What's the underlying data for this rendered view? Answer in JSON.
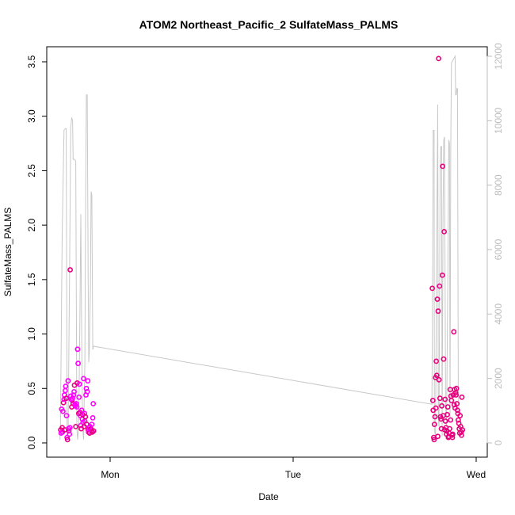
{
  "chart_data": {
    "type": "scatter",
    "title": "ATOM2 Northeast_Pacific_2 SulfateMass_PALMS",
    "xlabel": "Date",
    "ylabel": "SulfateMass_PALMS",
    "x_ticks": [
      {
        "label": "Mon",
        "day": 1
      },
      {
        "label": "Tue",
        "day": 2
      },
      {
        "label": "Wed",
        "day": 3
      }
    ],
    "xlim_days": [
      0.7,
      3.02
    ],
    "ylim": [
      0,
      3.5
    ],
    "y_ticks": [
      "0.0",
      "0.5",
      "1.0",
      "1.5",
      "2.0",
      "2.5",
      "3.0",
      "3.5"
    ],
    "y2_ticks": [
      "0",
      "2000",
      "4000",
      "6000",
      "8000",
      "10000",
      "12000"
    ],
    "y2lim": [
      0,
      12000
    ],
    "colors": {
      "points_primary": "#ff00ff",
      "points_secondary": "#e6007e",
      "line": "#c8c8c8",
      "right_axis": "#bdbdbd"
    },
    "series": [
      {
        "points_day_value": [
          [
            0.73,
            0.12
          ],
          [
            0.732,
            0.09
          ],
          [
            0.735,
            0.31
          ],
          [
            0.738,
            0.14
          ],
          [
            0.74,
            0.1
          ],
          [
            0.742,
            0.29
          ],
          [
            0.745,
            0.37
          ],
          [
            0.748,
            0.4
          ],
          [
            0.75,
            0.44
          ],
          [
            0.752,
            0.12
          ],
          [
            0.755,
            0.48
          ],
          [
            0.757,
            0.52
          ],
          [
            0.76,
            0.41
          ],
          [
            0.762,
            0.25
          ],
          [
            0.765,
            0.05
          ],
          [
            0.767,
            0.03
          ],
          [
            0.77,
            0.57
          ],
          [
            0.772,
            0.13
          ],
          [
            0.775,
            0.11
          ],
          [
            0.778,
            0.08
          ],
          [
            0.78,
            0.14
          ],
          [
            0.782,
            1.59
          ],
          [
            0.785,
            0.43
          ],
          [
            0.787,
            0.4
          ],
          [
            0.79,
            0.33
          ],
          [
            0.792,
            0.39
          ],
          [
            0.795,
            0.41
          ],
          [
            0.798,
            0.36
          ],
          [
            0.8,
            0.44
          ],
          [
            0.803,
            0.47
          ],
          [
            0.805,
            0.53
          ],
          [
            0.808,
            0.35
          ],
          [
            0.81,
            0.34
          ],
          [
            0.812,
            0.15
          ],
          [
            0.815,
            0.36
          ],
          [
            0.818,
            0.33
          ],
          [
            0.82,
            0.55
          ],
          [
            0.822,
            0.86
          ],
          [
            0.825,
            0.73
          ],
          [
            0.828,
            0.27
          ],
          [
            0.83,
            0.42
          ],
          [
            0.832,
            0.54
          ],
          [
            0.835,
            0.28
          ],
          [
            0.838,
            0.25
          ],
          [
            0.84,
            0.16
          ],
          [
            0.842,
            0.13
          ],
          [
            0.845,
            0.3
          ],
          [
            0.848,
            0.22
          ],
          [
            0.85,
            0.26
          ],
          [
            0.852,
            0.19
          ],
          [
            0.855,
            0.59
          ],
          [
            0.858,
            0.15
          ],
          [
            0.86,
            0.27
          ],
          [
            0.862,
            0.2
          ],
          [
            0.865,
            0.24
          ],
          [
            0.868,
            0.44
          ],
          [
            0.87,
            0.5
          ],
          [
            0.872,
            0.17
          ],
          [
            0.875,
            0.47
          ],
          [
            0.878,
            0.57
          ],
          [
            0.88,
            0.12
          ],
          [
            0.882,
            0.1
          ],
          [
            0.885,
            0.14
          ],
          [
            0.888,
            0.09
          ],
          [
            0.89,
            0.15
          ],
          [
            0.892,
            0.12
          ],
          [
            0.895,
            0.13
          ],
          [
            0.898,
            0.11
          ],
          [
            0.9,
            0.17
          ],
          [
            0.903,
            0.1
          ],
          [
            0.905,
            0.23
          ],
          [
            0.908,
            0.36
          ],
          [
            0.91,
            0.11
          ]
        ]
      },
      {
        "points_day_value": [
          [
            2.76,
            1.42
          ],
          [
            2.763,
            0.39
          ],
          [
            2.765,
            0.3
          ],
          [
            2.768,
            0.05
          ],
          [
            2.77,
            0.03
          ],
          [
            2.772,
            0.17
          ],
          [
            2.775,
            0.24
          ],
          [
            2.778,
            0.6
          ],
          [
            2.78,
            0.32
          ],
          [
            2.782,
            0.75
          ],
          [
            2.785,
            0.62
          ],
          [
            2.788,
            1.32
          ],
          [
            2.79,
            0.06
          ],
          [
            2.792,
            1.21
          ],
          [
            2.795,
            3.53
          ],
          [
            2.797,
            0.58
          ],
          [
            2.8,
            1.44
          ],
          [
            2.802,
            0.41
          ],
          [
            2.805,
            0.24
          ],
          [
            2.808,
            0.22
          ],
          [
            2.81,
            0.13
          ],
          [
            2.812,
            0.34
          ],
          [
            2.815,
            1.54
          ],
          [
            2.817,
            2.54
          ],
          [
            2.82,
            0.25
          ],
          [
            2.822,
            0.77
          ],
          [
            2.825,
            1.94
          ],
          [
            2.828,
            0.12
          ],
          [
            2.83,
            0.4
          ],
          [
            2.832,
            0.2
          ],
          [
            2.835,
            0.14
          ],
          [
            2.838,
            0.08
          ],
          [
            2.84,
            0.11
          ],
          [
            2.842,
            0.26
          ],
          [
            2.845,
            0.33
          ],
          [
            2.848,
            0.05
          ],
          [
            2.85,
            0.06
          ],
          [
            2.852,
            0.09
          ],
          [
            2.855,
            0.13
          ],
          [
            2.858,
            0.49
          ],
          [
            2.86,
            0.21
          ],
          [
            2.862,
            0.43
          ],
          [
            2.865,
            0.39
          ],
          [
            2.868,
            0.07
          ],
          [
            2.87,
            0.05
          ],
          [
            2.872,
            0.08
          ],
          [
            2.875,
            0.44
          ],
          [
            2.878,
            1.02
          ],
          [
            2.88,
            0.35
          ],
          [
            2.882,
            0.49
          ],
          [
            2.885,
            0.32
          ],
          [
            2.888,
            0.46
          ],
          [
            2.89,
            0.44
          ],
          [
            2.892,
            0.5
          ],
          [
            2.895,
            0.36
          ],
          [
            2.898,
            0.3
          ],
          [
            2.9,
            0.27
          ],
          [
            2.902,
            0.21
          ],
          [
            2.905,
            0.18
          ],
          [
            2.908,
            0.13
          ],
          [
            2.91,
            0.09
          ],
          [
            2.912,
            0.25
          ],
          [
            2.915,
            0.15
          ],
          [
            2.918,
            0.1
          ],
          [
            2.92,
            0.07
          ],
          [
            2.922,
            0.42
          ],
          [
            2.925,
            0.12
          ]
        ]
      },
      {
        "line_day_value": [
          [
            0.725,
            100
          ],
          [
            0.728,
            300
          ],
          [
            0.738,
            6500
          ],
          [
            0.748,
            9700
          ],
          [
            0.755,
            9750
          ],
          [
            0.76,
            9750
          ],
          [
            0.765,
            400
          ],
          [
            0.77,
            100
          ],
          [
            0.778,
            5000
          ],
          [
            0.785,
            9800
          ],
          [
            0.79,
            10100
          ],
          [
            0.795,
            10000
          ],
          [
            0.798,
            8800
          ],
          [
            0.805,
            8800
          ],
          [
            0.812,
            8750
          ],
          [
            0.818,
            500
          ],
          [
            0.822,
            100
          ],
          [
            0.828,
            500
          ],
          [
            0.835,
            4000
          ],
          [
            0.84,
            7100
          ],
          [
            0.845,
            3000
          ],
          [
            0.85,
            500
          ],
          [
            0.855,
            100
          ],
          [
            0.862,
            2500
          ],
          [
            0.866,
            7000
          ],
          [
            0.87,
            10800
          ],
          [
            0.875,
            10800
          ],
          [
            0.88,
            5000
          ],
          [
            0.883,
            2500
          ],
          [
            0.886,
            2800
          ],
          [
            0.892,
            4800
          ],
          [
            0.896,
            7800
          ],
          [
            0.9,
            7700
          ],
          [
            0.905,
            2900
          ],
          [
            0.91,
            3000
          ],
          [
            2.758,
            1200
          ],
          [
            2.762,
            4500
          ],
          [
            2.765,
            9700
          ],
          [
            2.77,
            9700
          ],
          [
            2.772,
            400
          ],
          [
            2.778,
            200
          ],
          [
            2.785,
            6500
          ],
          [
            2.79,
            10500
          ],
          [
            2.793,
            800
          ],
          [
            2.797,
            500
          ],
          [
            2.803,
            8500
          ],
          [
            2.807,
            9200
          ],
          [
            2.811,
            9200
          ],
          [
            2.814,
            200
          ],
          [
            2.819,
            7200
          ],
          [
            2.823,
            9400
          ],
          [
            2.827,
            9500
          ],
          [
            2.833,
            1200
          ],
          [
            2.838,
            500
          ],
          [
            2.845,
            5000
          ],
          [
            2.85,
            9400
          ],
          [
            2.854,
            9300
          ],
          [
            2.857,
            800
          ],
          [
            2.861,
            9100
          ],
          [
            2.865,
            11800
          ],
          [
            2.87,
            11850
          ],
          [
            2.875,
            11900
          ],
          [
            2.88,
            11950
          ],
          [
            2.885,
            12000
          ],
          [
            2.888,
            10800
          ],
          [
            2.891,
            10800
          ],
          [
            2.895,
            11000
          ],
          [
            2.898,
            11000
          ],
          [
            2.902,
            1800
          ],
          [
            2.905,
            1000
          ]
        ]
      }
    ]
  }
}
